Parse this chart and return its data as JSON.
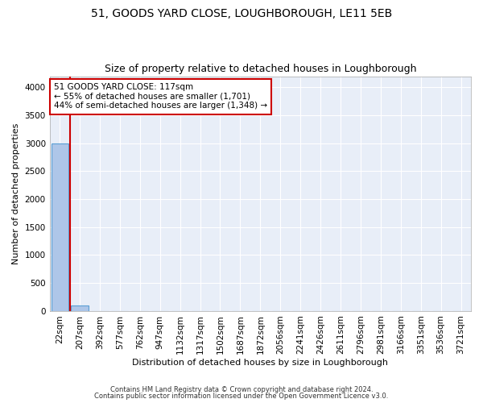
{
  "title": "51, GOODS YARD CLOSE, LOUGHBOROUGH, LE11 5EB",
  "subtitle": "Size of property relative to detached houses in Loughborough",
  "xlabel": "Distribution of detached houses by size in Loughborough",
  "ylabel": "Number of detached properties",
  "footer_line1": "Contains HM Land Registry data © Crown copyright and database right 2024.",
  "footer_line2": "Contains public sector information licensed under the Open Government Licence v3.0.",
  "bar_labels": [
    "22sqm",
    "207sqm",
    "392sqm",
    "577sqm",
    "762sqm",
    "947sqm",
    "1132sqm",
    "1317sqm",
    "1502sqm",
    "1687sqm",
    "1872sqm",
    "2056sqm",
    "2241sqm",
    "2426sqm",
    "2611sqm",
    "2796sqm",
    "2981sqm",
    "3166sqm",
    "3351sqm",
    "3536sqm",
    "3721sqm"
  ],
  "bar_values": [
    3000,
    100,
    0,
    0,
    0,
    0,
    0,
    0,
    0,
    0,
    0,
    0,
    0,
    0,
    0,
    0,
    0,
    0,
    0,
    0,
    0
  ],
  "bar_color": "#aec6e8",
  "bar_edge_color": "#5a9fd4",
  "property_bar_index": 0,
  "property_line_color": "#cc0000",
  "annotation_line1": "51 GOODS YARD CLOSE: 117sqm",
  "annotation_line2": "← 55% of detached houses are smaller (1,701)",
  "annotation_line3": "44% of semi-detached houses are larger (1,348) →",
  "annotation_box_color": "#cc0000",
  "annotation_text_color": "#000000",
  "ylim": [
    0,
    4200
  ],
  "yticks": [
    0,
    500,
    1000,
    1500,
    2000,
    2500,
    3000,
    3500,
    4000
  ],
  "background_color": "#e8eef8",
  "grid_color": "#ffffff",
  "title_fontsize": 10,
  "subtitle_fontsize": 9,
  "axis_label_fontsize": 8,
  "tick_fontsize": 7.5
}
